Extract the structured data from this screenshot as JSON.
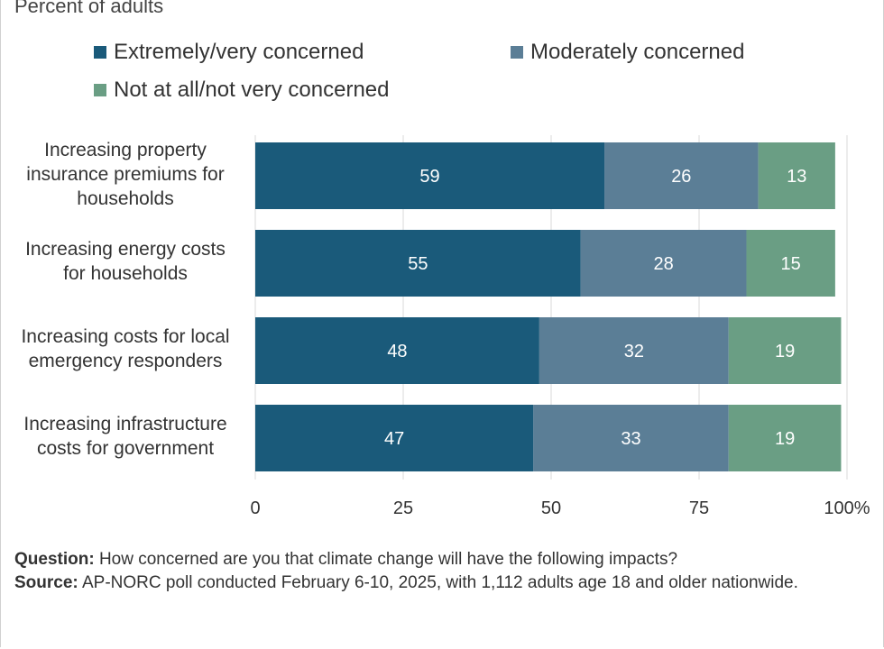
{
  "subtitle": "Percent of adults",
  "colors": {
    "extremely": "#1a5a7a",
    "moderately": "#5b7e96",
    "not_concerned": "#6a9e84",
    "axis_text": "#333333"
  },
  "legend": [
    {
      "label": "Extremely/very concerned",
      "color": "#1a5a7a"
    },
    {
      "label": "Moderately concerned",
      "color": "#5b7e96"
    },
    {
      "label": "Not at all/not very concerned",
      "color": "#6a9e84"
    }
  ],
  "category_lines": [
    [
      "Increasing property",
      "insurance premiums for",
      "households"
    ],
    [
      "Increasing energy costs",
      "for households"
    ],
    [
      "Increasing costs for local",
      "emergency responders"
    ],
    [
      "Increasing infrastructure",
      "costs for government"
    ]
  ],
  "chart_data": {
    "type": "bar",
    "orientation": "horizontal",
    "stacked": true,
    "categories": [
      "Increasing property insurance premiums for households",
      "Increasing energy costs for households",
      "Increasing costs for local emergency responders",
      "Increasing infrastructure costs for government"
    ],
    "series": [
      {
        "name": "Extremely/very concerned",
        "values": [
          59,
          55,
          48,
          47
        ]
      },
      {
        "name": "Moderately concerned",
        "values": [
          26,
          28,
          32,
          33
        ]
      },
      {
        "name": "Not at all/not very concerned",
        "values": [
          13,
          15,
          19,
          19
        ]
      }
    ],
    "xlim": [
      0,
      100
    ],
    "xticks": [
      "0",
      "25",
      "50",
      "75",
      "100%"
    ],
    "grid": true,
    "legend_position": "top"
  },
  "notes": {
    "question_label": "Question:",
    "question_text": " How concerned are you that climate change will have the following impacts?",
    "source_label": "Source:",
    "source_text": " AP-NORC poll conducted February 6-10, 2025, with 1,112 adults age 18 and older nationwide."
  }
}
